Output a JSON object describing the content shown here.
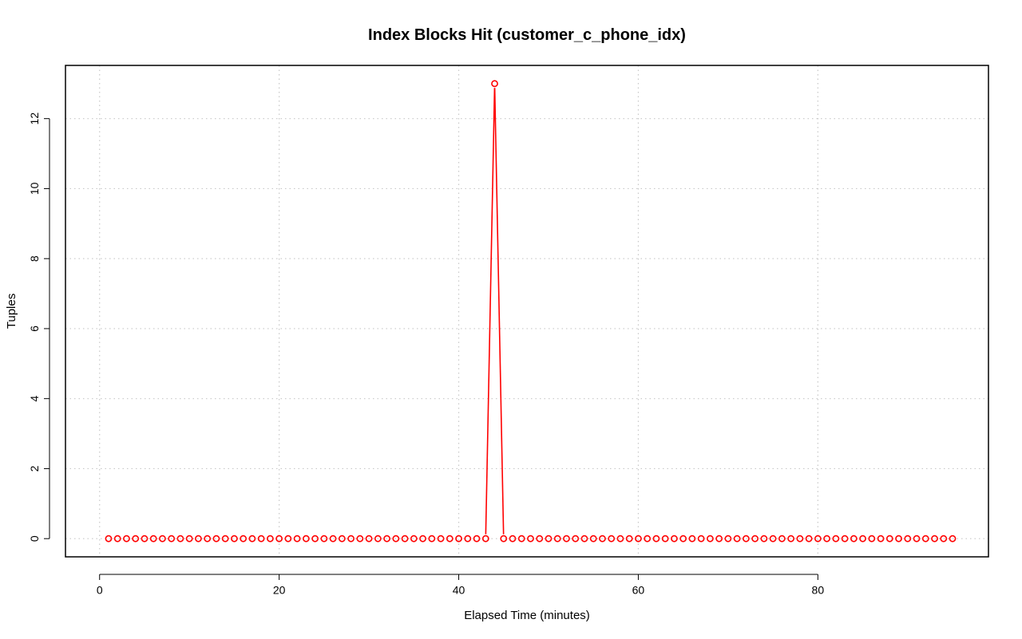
{
  "chart_data": {
    "type": "line",
    "title": "Index Blocks Hit (customer_c_phone_idx)",
    "xlabel": "Elapsed Time (minutes)",
    "ylabel": "Tuples",
    "xlim": [
      -3.8,
      99
    ],
    "ylim": [
      -0.52,
      13.52
    ],
    "x_ticks": [
      0,
      20,
      40,
      60,
      80
    ],
    "y_ticks": [
      0,
      2,
      4,
      6,
      8,
      10,
      12
    ],
    "grid": true,
    "marker": "open-circle",
    "series": [
      {
        "color": "#ff0000",
        "x": [
          1,
          2,
          3,
          4,
          5,
          6,
          7,
          8,
          9,
          10,
          11,
          12,
          13,
          14,
          15,
          16,
          17,
          18,
          19,
          20,
          21,
          22,
          23,
          24,
          25,
          26,
          27,
          28,
          29,
          30,
          31,
          32,
          33,
          34,
          35,
          36,
          37,
          38,
          39,
          40,
          41,
          42,
          43,
          44,
          45,
          46,
          47,
          48,
          49,
          50,
          51,
          52,
          53,
          54,
          55,
          56,
          57,
          58,
          59,
          60,
          61,
          62,
          63,
          64,
          65,
          66,
          67,
          68,
          69,
          70,
          71,
          72,
          73,
          74,
          75,
          76,
          77,
          78,
          79,
          80,
          81,
          82,
          83,
          84,
          85,
          86,
          87,
          88,
          89,
          90,
          91,
          92,
          93,
          94,
          95
        ],
        "y": [
          0,
          0,
          0,
          0,
          0,
          0,
          0,
          0,
          0,
          0,
          0,
          0,
          0,
          0,
          0,
          0,
          0,
          0,
          0,
          0,
          0,
          0,
          0,
          0,
          0,
          0,
          0,
          0,
          0,
          0,
          0,
          0,
          0,
          0,
          0,
          0,
          0,
          0,
          0,
          0,
          0,
          0,
          0,
          13,
          0,
          0,
          0,
          0,
          0,
          0,
          0,
          0,
          0,
          0,
          0,
          0,
          0,
          0,
          0,
          0,
          0,
          0,
          0,
          0,
          0,
          0,
          0,
          0,
          0,
          0,
          0,
          0,
          0,
          0,
          0,
          0,
          0,
          0,
          0,
          0,
          0,
          0,
          0,
          0,
          0,
          0,
          0,
          0,
          0,
          0,
          0,
          0,
          0,
          0,
          0
        ]
      }
    ]
  }
}
